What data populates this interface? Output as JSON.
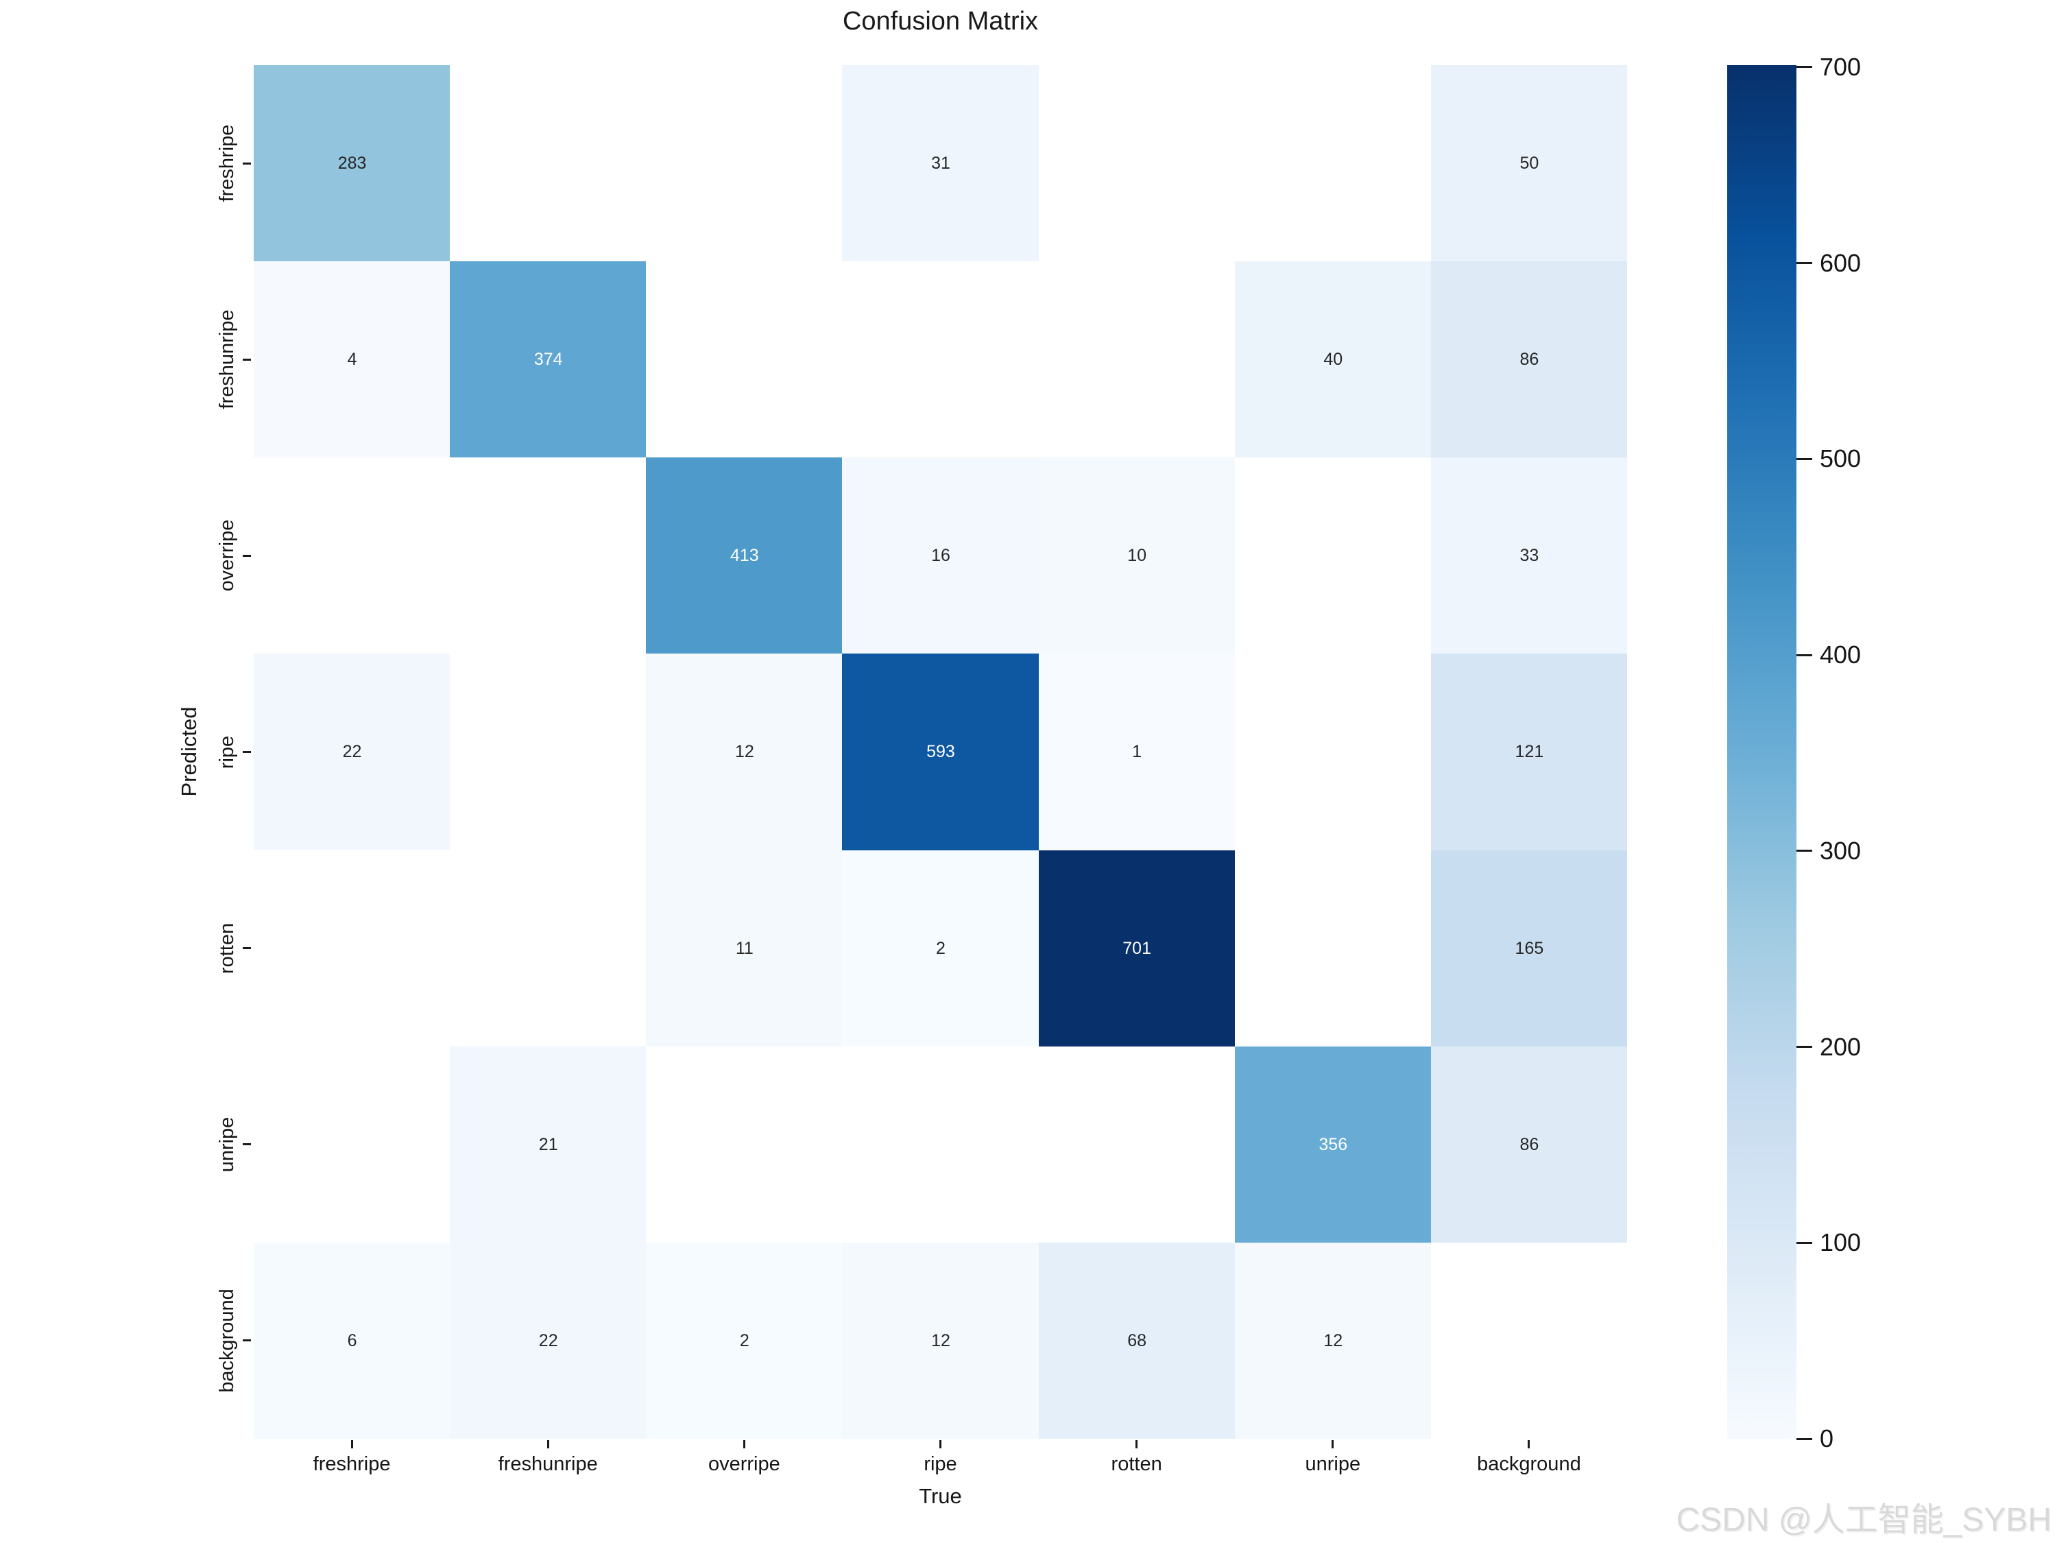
{
  "title": "Confusion Matrix",
  "watermark": "CSDN @人工智能_SYBH",
  "chart_data": {
    "type": "heatmap",
    "title": "Confusion Matrix",
    "xlabel": "True",
    "ylabel": "Predicted",
    "x_categories": [
      "freshripe",
      "freshunripe",
      "overripe",
      "ripe",
      "rotten",
      "unripe",
      "background"
    ],
    "y_categories": [
      "freshripe",
      "freshunripe",
      "overripe",
      "ripe",
      "rotten",
      "unripe",
      "background"
    ],
    "matrix": [
      [
        283,
        null,
        null,
        31,
        null,
        null,
        50
      ],
      [
        4,
        374,
        null,
        null,
        null,
        40,
        86
      ],
      [
        null,
        null,
        413,
        16,
        10,
        null,
        33
      ],
      [
        22,
        null,
        12,
        593,
        1,
        null,
        121
      ],
      [
        null,
        null,
        11,
        2,
        701,
        null,
        165
      ],
      [
        null,
        21,
        null,
        null,
        null,
        356,
        86
      ],
      [
        6,
        22,
        2,
        12,
        68,
        12,
        null
      ]
    ],
    "colormap": "Blues",
    "vmin": 0,
    "vmax": 701,
    "colorbar_ticks": [
      0,
      100,
      200,
      300,
      400,
      500,
      600,
      700
    ],
    "legend_position": "right",
    "grid": false,
    "masked_color": "#ffffff",
    "annot_dark_color": "#262626",
    "annot_light_color": "#ffffff",
    "blues_anchor_colors": [
      "#f7fbff",
      "#deebf7",
      "#c6dbef",
      "#9ecae1",
      "#6baed6",
      "#4292c6",
      "#2171b5",
      "#08519c",
      "#08306b"
    ]
  }
}
